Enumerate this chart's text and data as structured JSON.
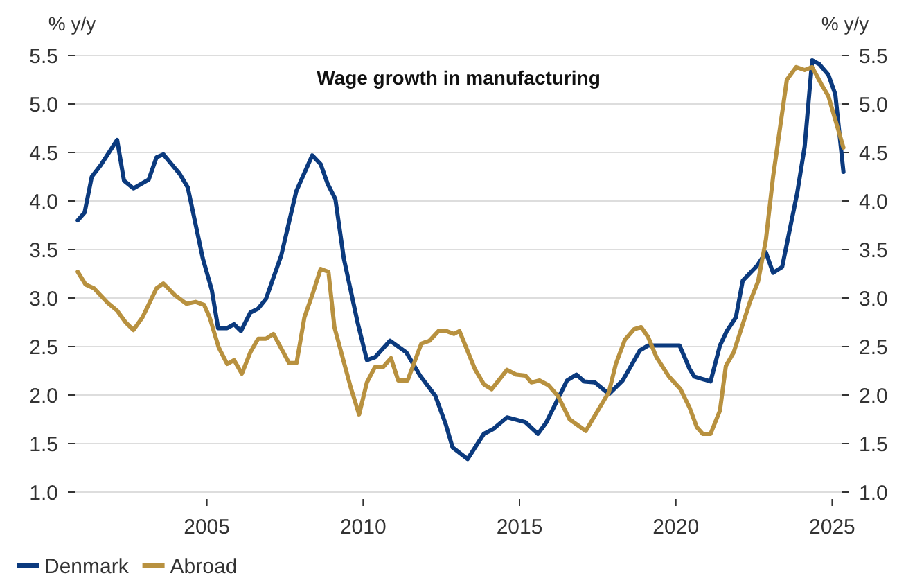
{
  "chart_data": {
    "type": "line",
    "title": "Wage growth in manufacturing",
    "ylabel": "% y/y",
    "y2label": "% y/y",
    "xlim": [
      2000.6,
      2025.5
    ],
    "xticks": [
      2005,
      2010,
      2015,
      2020,
      2025
    ],
    "ylim": [
      1,
      5.5
    ],
    "yticks": [
      {
        "value": 1,
        "label": "1.0"
      },
      {
        "value": 1.5,
        "label": "1.5"
      },
      {
        "value": 2,
        "label": "2.0"
      },
      {
        "value": 2.5,
        "label": "2.5"
      },
      {
        "value": 3,
        "label": "3.0"
      },
      {
        "value": 3.5,
        "label": "3.5"
      },
      {
        "value": 4,
        "label": "4.0"
      },
      {
        "value": 4.5,
        "label": "4.5"
      },
      {
        "value": 5,
        "label": "5.0"
      },
      {
        "value": 5.5,
        "label": "5.5"
      }
    ],
    "y2lim": [
      1,
      5.5
    ],
    "y2ticks": [
      {
        "value": 1,
        "label": "1.0"
      },
      {
        "value": 1.5,
        "label": "1.5"
      },
      {
        "value": 2,
        "label": "2.0"
      },
      {
        "value": 2.5,
        "label": "2.5"
      },
      {
        "value": 3,
        "label": "3.0"
      },
      {
        "value": 3.5,
        "label": "3.5"
      },
      {
        "value": 4,
        "label": "4.0"
      },
      {
        "value": 4.5,
        "label": "4.5"
      },
      {
        "value": 5,
        "label": "5.0"
      },
      {
        "value": 5.5,
        "label": "5.5"
      }
    ],
    "grid": "y",
    "legend": "bottom left",
    "marker": "none",
    "line_style": "solid",
    "series": [
      {
        "name": "Denmark",
        "color": "#0b3a7e",
        "x": [
          2000.87,
          2001.09,
          2001.32,
          2001.61,
          2002.13,
          2002.35,
          2002.65,
          2003.14,
          2003.39,
          2003.61,
          2004.13,
          2004.39,
          2004.87,
          2005.16,
          2005.36,
          2005.65,
          2005.87,
          2006.09,
          2006.39,
          2006.64,
          2006.89,
          2007.38,
          2007.86,
          2008.37,
          2008.64,
          2008.86,
          2009.11,
          2009.38,
          2009.82,
          2010.12,
          2010.38,
          2010.86,
          2011.38,
          2011.82,
          2012.31,
          2012.64,
          2012.86,
          2013.34,
          2013.86,
          2014.16,
          2014.6,
          2015.19,
          2015.59,
          2015.86,
          2016.52,
          2016.82,
          2017.07,
          2017.41,
          2017.86,
          2018.3,
          2018.85,
          2019.11,
          2020.12,
          2020.44,
          2020.59,
          2021.11,
          2021.41,
          2021.63,
          2021.92,
          2022.14,
          2022.59,
          2022.88,
          2023.11,
          2023.4,
          2023.88,
          2024.12,
          2024.36,
          2024.59,
          2024.88,
          2025.1,
          2025.36
        ],
        "values": [
          3.8,
          3.88,
          4.25,
          4.37,
          4.63,
          4.21,
          4.13,
          4.22,
          4.45,
          4.48,
          4.28,
          4.14,
          3.41,
          3.08,
          2.69,
          2.69,
          2.73,
          2.66,
          2.85,
          2.89,
          2.99,
          3.44,
          4.1,
          4.47,
          4.38,
          4.18,
          4.02,
          3.41,
          2.75,
          2.36,
          2.39,
          2.56,
          2.44,
          2.2,
          1.99,
          1.7,
          1.46,
          1.34,
          1.6,
          1.65,
          1.77,
          1.72,
          1.6,
          1.72,
          2.15,
          2.21,
          2.14,
          2.13,
          2.01,
          2.15,
          2.46,
          2.51,
          2.51,
          2.27,
          2.19,
          2.14,
          2.51,
          2.66,
          2.8,
          3.18,
          3.33,
          3.47,
          3.26,
          3.32,
          4.08,
          4.56,
          5.45,
          5.41,
          5.3,
          5.1,
          4.3
        ]
      },
      {
        "name": "Abroad",
        "color": "#b8913f",
        "x": [
          2000.87,
          2001.12,
          2001.39,
          2001.83,
          2002.13,
          2002.4,
          2002.65,
          2002.94,
          2003.39,
          2003.61,
          2003.98,
          2004.35,
          2004.64,
          2004.91,
          2005.09,
          2005.38,
          2005.65,
          2005.87,
          2006.12,
          2006.39,
          2006.64,
          2006.89,
          2007.13,
          2007.63,
          2007.87,
          2008.12,
          2008.37,
          2008.64,
          2008.89,
          2009.08,
          2009.6,
          2009.87,
          2010.12,
          2010.38,
          2010.64,
          2010.89,
          2011.12,
          2011.42,
          2011.86,
          2012.12,
          2012.41,
          2012.66,
          2012.9,
          2013.08,
          2013.57,
          2013.86,
          2014.11,
          2014.6,
          2014.9,
          2015.19,
          2015.38,
          2015.64,
          2015.93,
          2016.23,
          2016.6,
          2017.12,
          2017.56,
          2017.86,
          2018.08,
          2018.37,
          2018.67,
          2018.89,
          2019.11,
          2019.38,
          2019.78,
          2020.15,
          2020.44,
          2020.67,
          2020.86,
          2021.11,
          2021.41,
          2021.6,
          2021.85,
          2022.37,
          2022.63,
          2022.88,
          2023.11,
          2023.55,
          2023.85,
          2024.12,
          2024.36,
          2024.66,
          2024.88,
          2025.36
        ],
        "values": [
          3.27,
          3.14,
          3.1,
          2.95,
          2.87,
          2.75,
          2.67,
          2.8,
          3.1,
          3.15,
          3.03,
          2.94,
          2.96,
          2.93,
          2.8,
          2.49,
          2.32,
          2.36,
          2.22,
          2.44,
          2.58,
          2.58,
          2.63,
          2.33,
          2.33,
          2.8,
          3.03,
          3.3,
          3.27,
          2.7,
          2.08,
          1.8,
          2.13,
          2.29,
          2.29,
          2.38,
          2.15,
          2.15,
          2.53,
          2.56,
          2.66,
          2.66,
          2.63,
          2.66,
          2.27,
          2.11,
          2.06,
          2.26,
          2.21,
          2.2,
          2.13,
          2.15,
          2.1,
          1.99,
          1.75,
          1.63,
          1.87,
          2.03,
          2.32,
          2.57,
          2.68,
          2.7,
          2.6,
          2.39,
          2.19,
          2.06,
          1.87,
          1.67,
          1.6,
          1.6,
          1.84,
          2.3,
          2.44,
          2.96,
          3.17,
          3.6,
          4.25,
          5.25,
          5.38,
          5.35,
          5.38,
          5.2,
          5.08,
          4.55
        ]
      }
    ]
  }
}
